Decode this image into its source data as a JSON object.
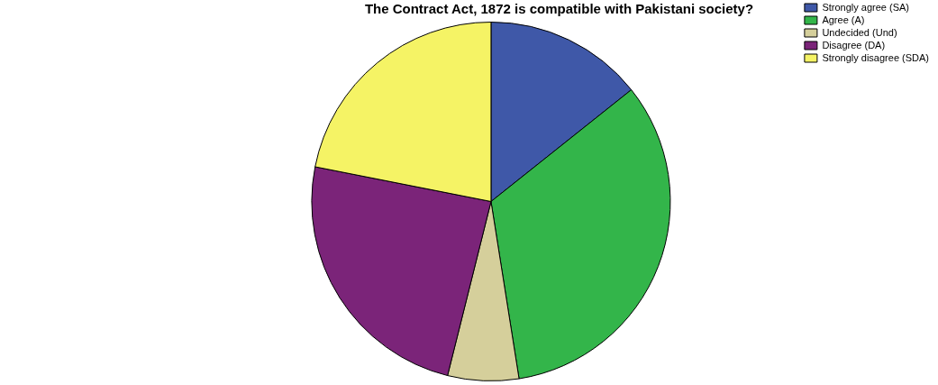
{
  "chart_data": {
    "type": "pie",
    "title": "The Contract Act, 1872 is compatible with Pakistani society?",
    "categories": [
      "Strongly agree (SA)",
      "Agree (A)",
      "Undecided (Und)",
      "Disagree (DA)",
      "Strongly disagree (SDA)"
    ],
    "values": [
      14.3,
      33.2,
      6.4,
      24.2,
      21.9
    ],
    "colors": [
      "#3f58a8",
      "#33b54a",
      "#d5cf9b",
      "#7b2479",
      "#f5f365"
    ],
    "legend": "top right"
  }
}
